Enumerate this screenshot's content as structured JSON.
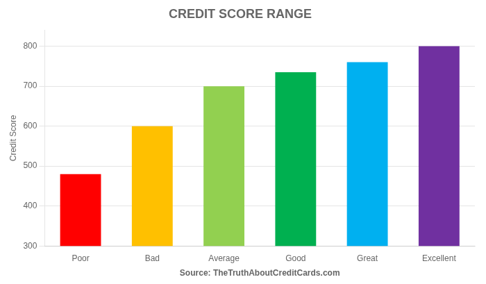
{
  "chart_data": {
    "type": "bar",
    "title": "CREDIT SCORE RANGE",
    "categories": [
      "Poor",
      "Bad",
      "Average",
      "Good",
      "Great",
      "Excellent"
    ],
    "values": [
      480,
      600,
      700,
      735,
      760,
      800
    ],
    "colors": [
      "#ff0000",
      "#ffc000",
      "#92d050",
      "#00b050",
      "#00b0f0",
      "#7030a0"
    ],
    "xlabel": "Source: TheTruthAboutCreditCards.com",
    "ylabel": "Credit Score",
    "ylim": [
      300,
      840
    ],
    "yticks": [
      300,
      400,
      500,
      600,
      700,
      800
    ],
    "grid": true
  }
}
